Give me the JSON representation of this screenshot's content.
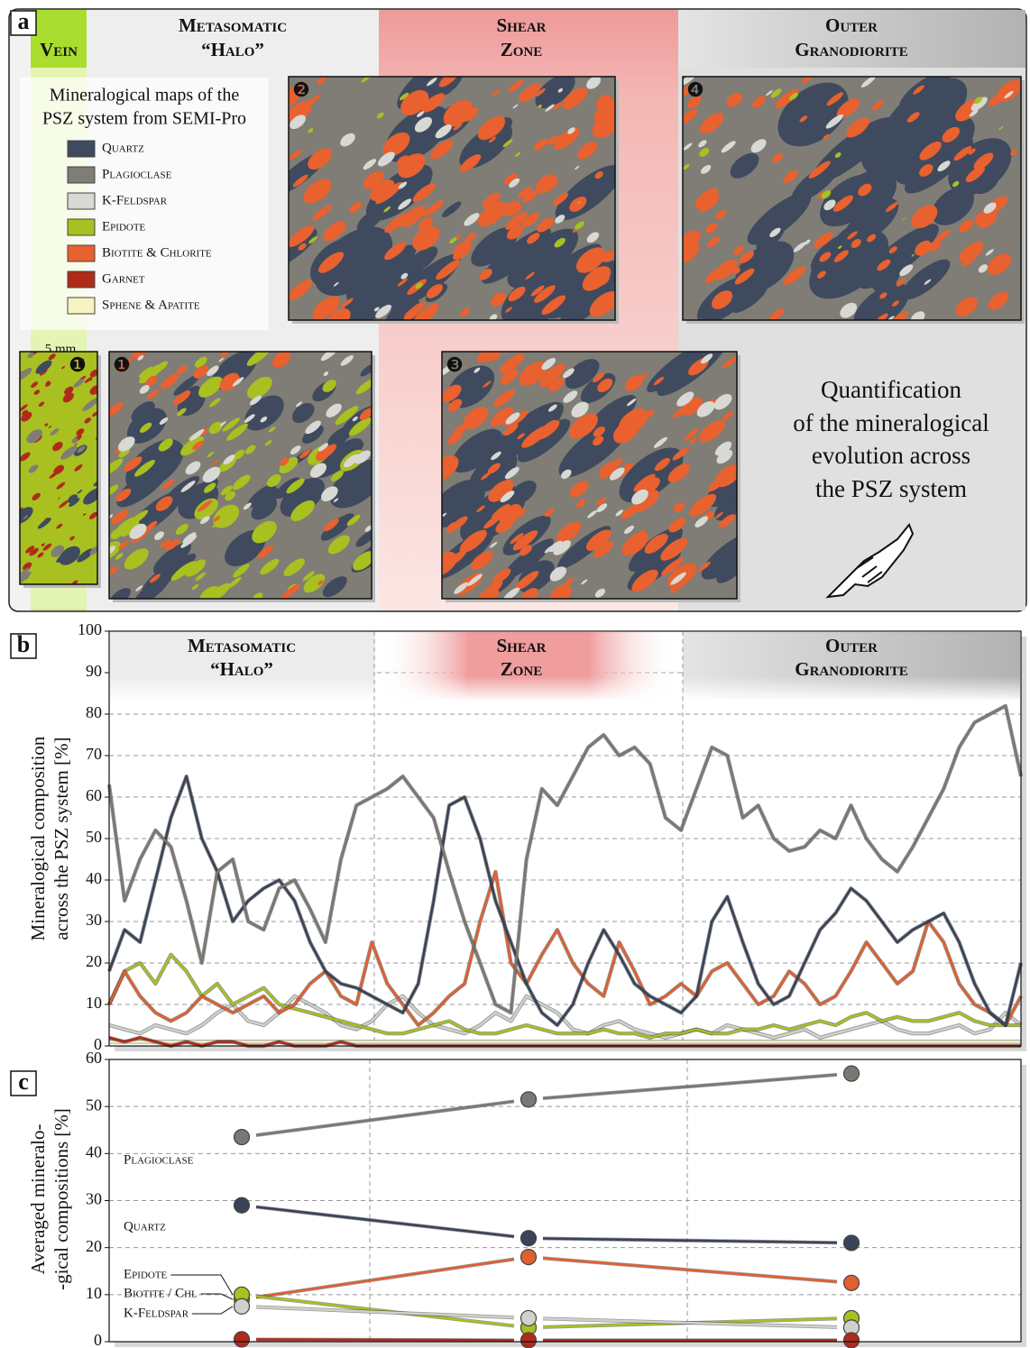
{
  "panel_a": {
    "label": "a",
    "zones": [
      [
        "Vein"
      ],
      [
        "Metasomatic",
        "“Halo”"
      ],
      [
        "Shear",
        "Zone"
      ],
      [
        "Outer",
        "Granodiorite"
      ]
    ],
    "legend_title": [
      "Mineralogical maps of the",
      "PSZ system from SEMI-Pro"
    ],
    "legend": [
      {
        "name": "Quartz",
        "color": "#3f4a5e"
      },
      {
        "name": "Plagioclase",
        "color": "#7f7d75"
      },
      {
        "name": "K-Feldspar",
        "color": "#d8d8d4"
      },
      {
        "name": "Epidote",
        "color": "#a8c020"
      },
      {
        "name": "Biotite & Chlorite",
        "color": "#e8612f"
      },
      {
        "name": "Garnet",
        "color": "#b02a1a"
      },
      {
        "name": "Sphene & Apatite",
        "color": "#f7f3c2"
      }
    ],
    "scale_bar": "5 mm",
    "map_numbers": [
      "❶",
      "❶",
      "❷",
      "❸",
      "❹"
    ],
    "caption": [
      "Quantification",
      "of the mineralogical",
      "evolution across",
      "the PSZ system"
    ]
  },
  "chart_data": [
    {
      "type": "line",
      "label": "b",
      "y_label": [
        "Mineralogical composition",
        "across the PSZ system [%]"
      ],
      "zones": [
        [
          "Metasomatic",
          "“Halo”"
        ],
        [
          "Shear",
          "Zone"
        ],
        [
          "Outer",
          "Granodiorite"
        ]
      ],
      "ylim": [
        0,
        100
      ],
      "yticks": [
        0,
        10,
        20,
        30,
        40,
        50,
        60,
        70,
        80,
        90,
        100
      ],
      "grid": true,
      "series": [
        {
          "color": "#f7f3c2",
          "values": [
            1,
            1,
            1,
            1,
            1,
            1,
            1,
            1,
            1,
            1,
            1,
            1,
            1,
            1,
            1,
            1,
            1,
            1,
            1,
            1,
            1,
            1,
            1,
            1,
            1,
            1,
            1,
            1,
            1,
            1,
            1,
            1,
            1,
            1,
            1,
            1,
            1,
            1,
            1,
            1,
            1,
            1,
            1,
            1,
            1,
            1,
            1,
            1,
            1,
            1,
            1,
            1,
            1,
            1,
            1,
            1,
            1,
            1,
            1,
            1
          ]
        },
        {
          "color": "#b02a1a",
          "values": [
            2,
            1,
            2,
            1,
            0,
            1,
            0,
            1,
            1,
            0,
            0,
            1,
            0,
            0,
            0,
            1,
            0,
            0,
            0,
            0,
            0,
            0,
            0,
            0,
            0,
            0,
            0,
            0,
            0,
            0,
            0,
            0,
            0,
            0,
            0,
            0,
            0,
            0,
            0,
            0,
            0,
            0,
            0,
            0,
            0,
            0,
            0,
            0,
            0,
            0,
            0,
            0,
            0,
            0,
            0,
            0,
            0,
            0,
            0,
            0
          ]
        },
        {
          "color": "#d0d0cc",
          "values": [
            5,
            4,
            3,
            5,
            4,
            3,
            5,
            8,
            10,
            6,
            5,
            8,
            12,
            10,
            8,
            5,
            4,
            6,
            10,
            12,
            8,
            5,
            4,
            3,
            5,
            8,
            6,
            12,
            10,
            8,
            4,
            3,
            5,
            6,
            4,
            3,
            2,
            3,
            4,
            3,
            5,
            4,
            3,
            2,
            3,
            4,
            2,
            3,
            4,
            5,
            6,
            4,
            3,
            3,
            4,
            5,
            3,
            4,
            8,
            5
          ]
        },
        {
          "color": "#a8c020",
          "values": [
            10,
            18,
            20,
            15,
            22,
            18,
            12,
            15,
            10,
            12,
            14,
            10,
            9,
            8,
            7,
            6,
            5,
            4,
            3,
            3,
            4,
            5,
            6,
            4,
            3,
            3,
            4,
            5,
            4,
            3,
            3,
            3,
            4,
            3,
            3,
            2,
            3,
            3,
            4,
            3,
            3,
            4,
            4,
            5,
            4,
            5,
            6,
            5,
            7,
            8,
            6,
            7,
            6,
            6,
            7,
            8,
            6,
            5,
            5,
            5
          ]
        },
        {
          "color": "#e0602f",
          "values": [
            10,
            18,
            12,
            8,
            6,
            8,
            12,
            10,
            8,
            10,
            12,
            8,
            10,
            15,
            18,
            12,
            10,
            25,
            15,
            10,
            5,
            8,
            12,
            15,
            30,
            42,
            20,
            15,
            22,
            28,
            20,
            15,
            12,
            25,
            18,
            10,
            12,
            15,
            12,
            18,
            20,
            15,
            10,
            12,
            18,
            15,
            10,
            12,
            18,
            25,
            20,
            15,
            18,
            30,
            25,
            15,
            10,
            8,
            5,
            12
          ]
        },
        {
          "color": "#3a4458",
          "values": [
            18,
            28,
            25,
            40,
            55,
            65,
            50,
            42,
            30,
            35,
            38,
            40,
            35,
            25,
            18,
            15,
            14,
            12,
            10,
            8,
            15,
            35,
            58,
            60,
            50,
            35,
            25,
            15,
            8,
            5,
            10,
            20,
            28,
            22,
            15,
            12,
            10,
            8,
            12,
            30,
            36,
            25,
            15,
            10,
            12,
            20,
            28,
            32,
            38,
            35,
            30,
            25,
            28,
            30,
            32,
            25,
            15,
            8,
            5,
            20
          ]
        },
        {
          "color": "#7a7872",
          "values": [
            63,
            35,
            45,
            52,
            48,
            35,
            20,
            42,
            45,
            30,
            28,
            38,
            40,
            33,
            25,
            45,
            58,
            60,
            62,
            65,
            60,
            55,
            42,
            30,
            20,
            10,
            8,
            45,
            62,
            58,
            65,
            72,
            75,
            70,
            72,
            68,
            55,
            52,
            62,
            72,
            70,
            55,
            58,
            50,
            47,
            48,
            52,
            50,
            58,
            50,
            45,
            42,
            48,
            55,
            62,
            72,
            78,
            80,
            82,
            65
          ]
        }
      ]
    },
    {
      "type": "line",
      "label": "c",
      "y_label": [
        "Averaged mineralo-",
        "-gical compositions [%]"
      ],
      "categories": [
        null,
        null,
        null
      ],
      "ylim": [
        0,
        60
      ],
      "yticks": [
        0,
        10,
        20,
        30,
        40,
        50,
        60
      ],
      "grid": true,
      "series": [
        {
          "name": "Plagioclase",
          "color": "#7a7872",
          "values": [
            43.5,
            51.5,
            57
          ]
        },
        {
          "name": "Quartz",
          "color": "#3a4458",
          "values": [
            29,
            22,
            21
          ]
        },
        {
          "name": "Biotite / Chl",
          "color": "#e0602f",
          "values": [
            9,
            18,
            12.5
          ]
        },
        {
          "name": "Epidote",
          "color": "#a8c020",
          "values": [
            10,
            3,
            5
          ]
        },
        {
          "name": "K-Feldspar",
          "color": "#d0d0cc",
          "values": [
            7.5,
            5,
            3
          ]
        },
        {
          "color": "#b02a1a",
          "values": [
            0.5,
            0.3,
            0.3
          ]
        }
      ]
    }
  ]
}
